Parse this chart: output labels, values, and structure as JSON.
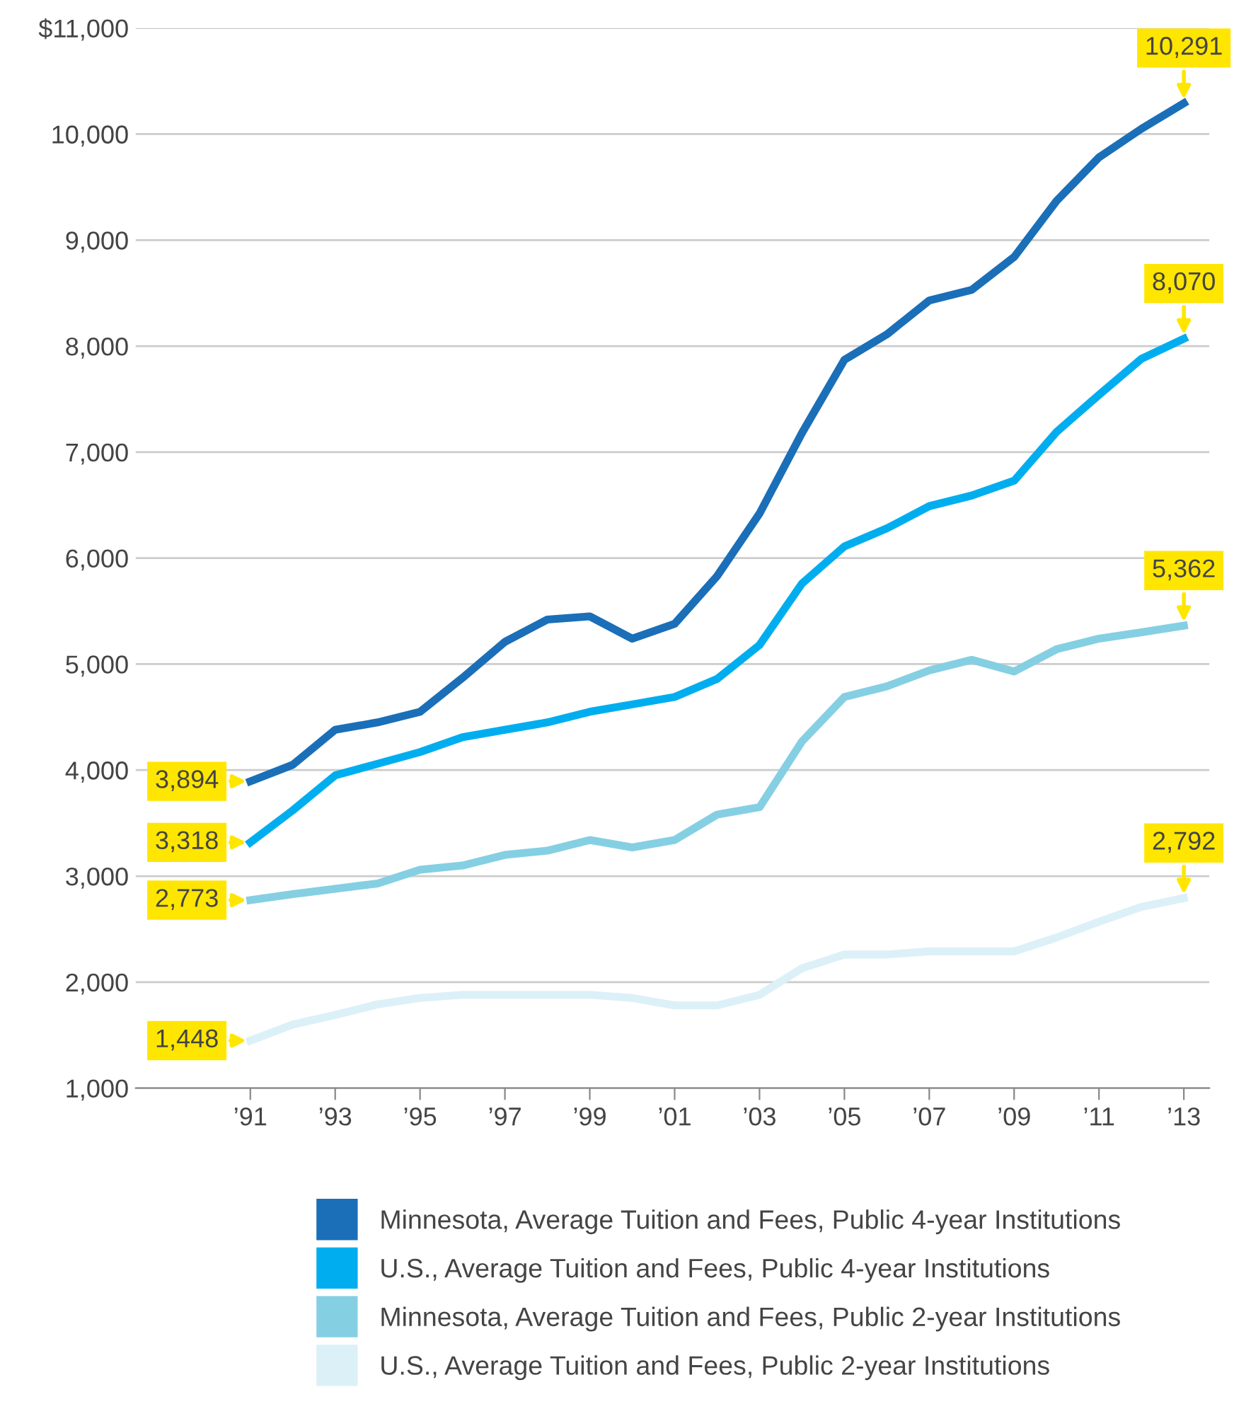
{
  "chart_data": {
    "type": "line",
    "x": [
      1991,
      1992,
      1993,
      1994,
      1995,
      1996,
      1997,
      1998,
      1999,
      2000,
      2001,
      2002,
      2003,
      2004,
      2005,
      2006,
      2007,
      2008,
      2009,
      2010,
      2011,
      2012,
      2013
    ],
    "series": [
      {
        "name": "Minnesota, Average Tuition and Fees, Public 4-year Institutions",
        "color": "#1a6fb8",
        "values": [
          3894,
          4050,
          4380,
          4450,
          4550,
          4870,
          5210,
          5420,
          5450,
          5240,
          5380,
          5830,
          6420,
          7180,
          7870,
          8110,
          8430,
          8530,
          8840,
          9370,
          9780,
          10050,
          10291
        ],
        "value_labels": [
          "3,894",
          null,
          null,
          null,
          null,
          null,
          null,
          null,
          null,
          null,
          null,
          null,
          null,
          null,
          null,
          null,
          null,
          null,
          null,
          null,
          null,
          null,
          "10,291"
        ]
      },
      {
        "name": "U.S., Average Tuition and Fees, Public 4-year Institutions",
        "color": "#00aeef",
        "values": [
          3318,
          3620,
          3950,
          4060,
          4170,
          4310,
          4380,
          4450,
          4550,
          4620,
          4690,
          4860,
          5180,
          5760,
          6110,
          6280,
          6490,
          6590,
          6730,
          7190,
          7540,
          7880,
          8070
        ],
        "value_labels": [
          "3,318",
          null,
          null,
          null,
          null,
          null,
          null,
          null,
          null,
          null,
          null,
          null,
          null,
          null,
          null,
          null,
          null,
          null,
          null,
          null,
          null,
          null,
          "8,070"
        ]
      },
      {
        "name": "Minnesota, Average Tuition and Fees, Public 2-year Institutions",
        "color": "#85cfe3",
        "values": [
          2773,
          2830,
          2880,
          2930,
          3060,
          3100,
          3200,
          3240,
          3340,
          3270,
          3340,
          3580,
          3650,
          4270,
          4690,
          4790,
          4940,
          5040,
          4930,
          5140,
          5240,
          5300,
          5362
        ],
        "value_labels": [
          "2,773",
          null,
          null,
          null,
          null,
          null,
          null,
          null,
          null,
          null,
          null,
          null,
          null,
          null,
          null,
          null,
          null,
          null,
          null,
          null,
          null,
          null,
          "5,362"
        ]
      },
      {
        "name": "U.S., Average Tuition and Fees, Public 2-year Institutions",
        "color": "#dcf0f8",
        "values": [
          1448,
          1600,
          1690,
          1790,
          1850,
          1880,
          1880,
          1880,
          1880,
          1850,
          1780,
          1780,
          1880,
          2130,
          2260,
          2260,
          2290,
          2290,
          2290,
          2420,
          2570,
          2710,
          2792
        ],
        "value_labels": [
          "1,448",
          null,
          null,
          null,
          null,
          null,
          null,
          null,
          null,
          null,
          null,
          null,
          null,
          null,
          null,
          null,
          null,
          null,
          null,
          null,
          null,
          null,
          "2,792"
        ]
      }
    ],
    "xlim": [
      1988.3,
      2013.6
    ],
    "xticks": [
      {
        "value": 1991,
        "label": "’91"
      },
      {
        "value": 1993,
        "label": "’93"
      },
      {
        "value": 1995,
        "label": "’95"
      },
      {
        "value": 1997,
        "label": "’97"
      },
      {
        "value": 1999,
        "label": "’99"
      },
      {
        "value": 2001,
        "label": "’01"
      },
      {
        "value": 2003,
        "label": "’03"
      },
      {
        "value": 2005,
        "label": "’05"
      },
      {
        "value": 2007,
        "label": "’07"
      },
      {
        "value": 2009,
        "label": "’09"
      },
      {
        "value": 2011,
        "label": "’11"
      },
      {
        "value": 2013,
        "label": "’13"
      }
    ],
    "ylim": [
      1000,
      11000
    ],
    "yticks": [
      {
        "value": 1000,
        "label": "1,000"
      },
      {
        "value": 2000,
        "label": "2,000"
      },
      {
        "value": 3000,
        "label": "3,000"
      },
      {
        "value": 4000,
        "label": "4,000"
      },
      {
        "value": 5000,
        "label": "5,000"
      },
      {
        "value": 6000,
        "label": "6,000"
      },
      {
        "value": 7000,
        "label": "7,000"
      },
      {
        "value": 8000,
        "label": "8,000"
      },
      {
        "value": 9000,
        "label": "9,000"
      },
      {
        "value": 10000,
        "label": "10,000"
      },
      {
        "value": 11000,
        "label": "$11,000"
      }
    ],
    "grid": "y",
    "legend": "bottom",
    "marker": "none",
    "line_style": "solid"
  }
}
